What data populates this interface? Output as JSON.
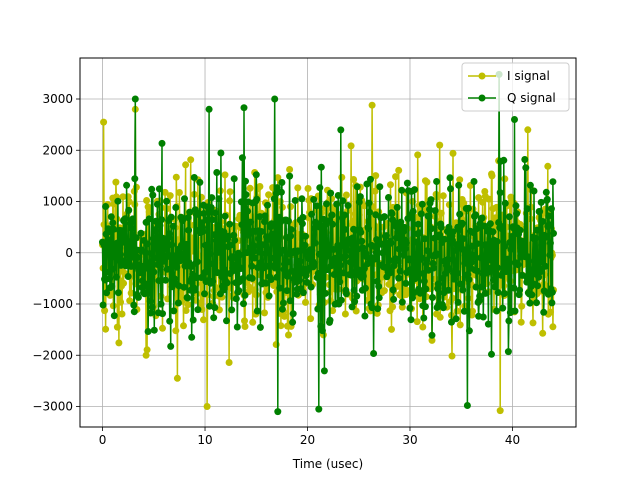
{
  "chart_data": {
    "type": "line",
    "title": "",
    "xlabel": "Time (usec)",
    "ylabel": "",
    "xlim": [
      -2.2,
      46.2
    ],
    "ylim": [
      -3400,
      3800
    ],
    "xticks": [
      0,
      10,
      20,
      30,
      40
    ],
    "yticks": [
      -3000,
      -2000,
      -1000,
      0,
      1000,
      2000,
      3000
    ],
    "xtick_labels": [
      "0",
      "10",
      "20",
      "30",
      "40"
    ],
    "ytick_labels": [
      "−3000",
      "−2000",
      "−1000",
      "0",
      "1000",
      "2000",
      "3000"
    ],
    "grid": true,
    "legend_position": "top-right",
    "sample_rate_per_usec": 20,
    "x_start": 0,
    "x_end": 44,
    "series": [
      {
        "name": "I signal",
        "color": "#bfbf00",
        "marker": "circle",
        "approx_std": 700,
        "approx_min": -3080,
        "approx_max": 2880
      },
      {
        "name": "Q signal",
        "color": "#008000",
        "marker": "circle",
        "approx_std": 700,
        "approx_min": -3100,
        "approx_max": 3480
      }
    ],
    "notable_points": {
      "I signal": [
        {
          "x": 0.1,
          "y": 2550
        },
        {
          "x": 3.2,
          "y": 2800
        },
        {
          "x": 10.2,
          "y": -3000
        },
        {
          "x": 26.3,
          "y": 2880
        },
        {
          "x": 38.8,
          "y": -3080
        },
        {
          "x": 41.5,
          "y": 2400
        }
      ],
      "Q signal": [
        {
          "x": 3.2,
          "y": 3000
        },
        {
          "x": 10.4,
          "y": 2800
        },
        {
          "x": 13.8,
          "y": 2830
        },
        {
          "x": 16.8,
          "y": 3000
        },
        {
          "x": 17.1,
          "y": -3100
        },
        {
          "x": 21.1,
          "y": -3050
        },
        {
          "x": 35.6,
          "y": -2980
        },
        {
          "x": 38.7,
          "y": 3480
        },
        {
          "x": 40.2,
          "y": 2600
        }
      ]
    }
  }
}
